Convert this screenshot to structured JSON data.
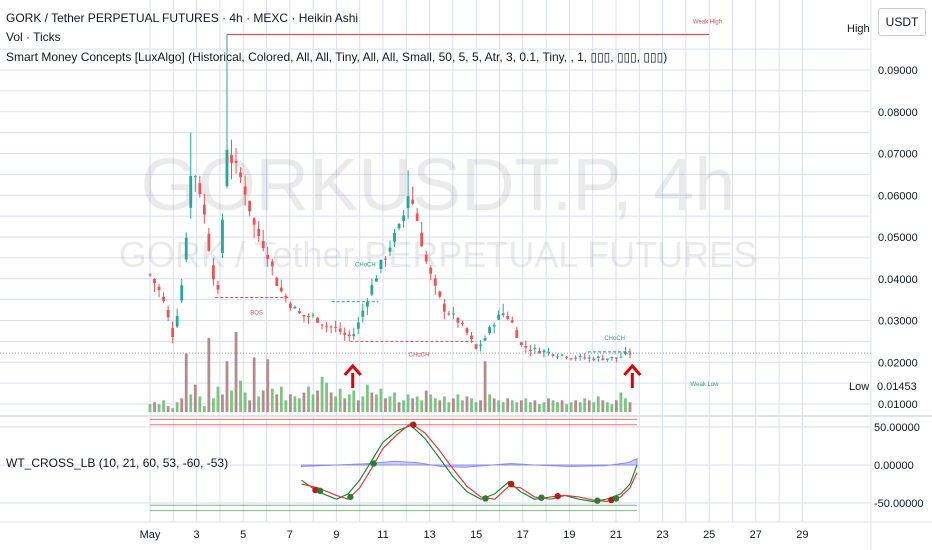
{
  "header": {
    "line1": "GORK / Tether PERPETUAL FUTURES · 4h · MEXC · Heikin Ashi",
    "line2": "Vol · Ticks",
    "line3": "Smart Money Concepts [LuxAlgo] (Historical, Colored, All, All, Tiny, All, All, Small, 50, 5, 5, Atr, 3, 0.1, Tiny, , 1, ▯▯▯, ▯▯▯, ▯▯▯)",
    "wt_label": "WT_CROSS_LB (10, 21, 60, 53, -60, -53)"
  },
  "currency": "USDT",
  "watermark": {
    "line1": "GORKUSDT.P, 4h",
    "line2": "GORK / Tether PERPETUAL FUTURES"
  },
  "price_labels": {
    "high": "High",
    "low": "Low",
    "low_value": "0.01453"
  },
  "smc_labels": {
    "weak_high": "Weak High",
    "weak_low": "Weak Low",
    "bos": "BOS",
    "choch": "CHoCH"
  },
  "colors": {
    "up": "#26a69a",
    "down": "#ef5350",
    "volume_up": "#66bb6a",
    "volume_down": "#a87878",
    "grid": "#d9dff7",
    "signal_arrow": "#e00000",
    "wt1": "#1b8a3a",
    "wt2": "#e53935",
    "band": "#8c8ff0"
  },
  "chart_data": [
    {
      "type": "candlestick",
      "title": "GORK / Tether PERPETUAL FUTURES · 4h · MEXC · Heikin Ashi",
      "x_tick_labels": [
        "May",
        "3",
        "5",
        "7",
        "9",
        "11",
        "13",
        "15",
        "17",
        "19",
        "21",
        "23",
        "25",
        "27",
        "29"
      ],
      "y_tick_labels": [
        "0.01000",
        "0.02000",
        "0.03000",
        "0.04000",
        "0.05000",
        "0.06000",
        "0.07000",
        "0.08000",
        "0.09000"
      ],
      "ylim": [
        0.005,
        0.1
      ],
      "current_price": 0.0222,
      "weak_high": 0.0985,
      "weak_low": 0.01453,
      "keypoints": [
        [
          1.0,
          0.041
        ],
        [
          1.5,
          0.036
        ],
        [
          2.0,
          0.026
        ],
        [
          2.4,
          0.04
        ],
        [
          2.8,
          0.068
        ],
        [
          3.2,
          0.06
        ],
        [
          3.6,
          0.045
        ],
        [
          3.9,
          0.035
        ],
        [
          4.3,
          0.072
        ],
        [
          4.6,
          0.067
        ],
        [
          5.0,
          0.063
        ],
        [
          5.5,
          0.052
        ],
        [
          6.0,
          0.047
        ],
        [
          6.5,
          0.038
        ],
        [
          7.0,
          0.034
        ],
        [
          7.5,
          0.031
        ],
        [
          8.0,
          0.031
        ],
        [
          8.5,
          0.029
        ],
        [
          9.0,
          0.028
        ],
        [
          9.5,
          0.026
        ],
        [
          9.8,
          0.027
        ],
        [
          10.3,
          0.035
        ],
        [
          10.8,
          0.042
        ],
        [
          11.3,
          0.048
        ],
        [
          11.8,
          0.053
        ],
        [
          12.1,
          0.061
        ],
        [
          12.4,
          0.056
        ],
        [
          12.8,
          0.045
        ],
        [
          13.2,
          0.038
        ],
        [
          13.6,
          0.033
        ],
        [
          14.2,
          0.03
        ],
        [
          14.6,
          0.027
        ],
        [
          15.0,
          0.023
        ],
        [
          15.4,
          0.026
        ],
        [
          15.8,
          0.03
        ],
        [
          16.2,
          0.032
        ],
        [
          16.6,
          0.029
        ],
        [
          16.9,
          0.024
        ],
        [
          17.5,
          0.023
        ],
        [
          18.5,
          0.022
        ],
        [
          19.5,
          0.021
        ],
        [
          20.5,
          0.021
        ],
        [
          21.0,
          0.021
        ],
        [
          21.6,
          0.0222
        ]
      ],
      "annotations": [
        {
          "label": "BOS",
          "x": 7.0,
          "y": 0.0355
        },
        {
          "label": "CHoCH",
          "x": 9.8,
          "y": 0.0345
        },
        {
          "label": "CHoCH",
          "x": 12.7,
          "y": 0.025
        },
        {
          "label": "CHoCH",
          "x": 20.8,
          "y": 0.0225
        }
      ],
      "signal_arrows": [
        9.7,
        21.7
      ]
    },
    {
      "type": "bar",
      "title": "Vol · Ticks",
      "values": [
        4,
        5,
        4,
        6,
        3,
        2,
        5,
        7,
        30,
        9,
        14,
        8,
        3,
        38,
        7,
        13,
        9,
        26,
        11,
        41,
        16,
        10,
        6,
        28,
        8,
        11,
        27,
        12,
        9,
        13,
        6,
        9,
        8,
        7,
        10,
        13,
        9,
        11,
        18,
        15,
        10,
        8,
        12,
        7,
        9,
        11,
        6,
        8,
        14,
        10,
        9,
        12,
        7,
        8,
        10,
        5,
        6,
        9,
        7,
        8,
        6,
        11,
        9,
        7,
        6,
        8,
        5,
        7,
        9,
        6,
        8,
        7,
        5,
        6,
        26,
        9,
        7,
        6,
        5,
        7,
        6,
        5,
        6,
        7,
        5,
        6,
        4,
        5,
        7,
        6,
        5,
        6,
        4,
        5,
        6,
        5,
        7,
        6,
        5,
        8,
        6,
        5,
        4,
        6,
        10,
        7,
        5
      ]
    },
    {
      "type": "line",
      "title": "WT_CROSS_LB (10, 21, 60, 53, -60, -53)",
      "y_tick_labels": [
        "50.00000",
        "0.00000",
        "-50.00000"
      ],
      "ylim": [
        -65,
        60
      ],
      "levels": [
        53,
        60,
        -53,
        -60
      ],
      "series": [
        {
          "keypoints": [
            [
              7.5,
              -20
            ],
            [
              8.2,
              -35
            ],
            [
              9.0,
              -45
            ],
            [
              9.5,
              -38
            ],
            [
              10.0,
              -20
            ],
            [
              10.5,
              5
            ],
            [
              11.0,
              30
            ],
            [
              11.6,
              45
            ],
            [
              12.2,
              52
            ],
            [
              12.8,
              35
            ],
            [
              13.4,
              10
            ],
            [
              14.0,
              -15
            ],
            [
              14.6,
              -35
            ],
            [
              15.2,
              -45
            ],
            [
              15.8,
              -38
            ],
            [
              16.4,
              -22
            ],
            [
              16.9,
              -35
            ],
            [
              17.5,
              -45
            ],
            [
              18.2,
              -42
            ],
            [
              18.8,
              -40
            ],
            [
              19.4,
              -45
            ],
            [
              20.0,
              -48
            ],
            [
              20.6,
              -45
            ],
            [
              21.2,
              -38
            ],
            [
              21.6,
              -25
            ],
            [
              21.9,
              0
            ]
          ]
        },
        {
          "keypoints": [
            [
              7.5,
              -25
            ],
            [
              8.2,
              -30
            ],
            [
              9.0,
              -40
            ],
            [
              9.5,
              -45
            ],
            [
              10.0,
              -30
            ],
            [
              10.5,
              -5
            ],
            [
              11.0,
              22
            ],
            [
              11.6,
              40
            ],
            [
              12.2,
              55
            ],
            [
              12.8,
              42
            ],
            [
              13.4,
              20
            ],
            [
              14.0,
              -5
            ],
            [
              14.6,
              -28
            ],
            [
              15.2,
              -42
            ],
            [
              15.8,
              -45
            ],
            [
              16.4,
              -28
            ],
            [
              16.9,
              -30
            ],
            [
              17.5,
              -42
            ],
            [
              18.2,
              -45
            ],
            [
              18.8,
              -40
            ],
            [
              19.4,
              -42
            ],
            [
              20.0,
              -46
            ],
            [
              20.6,
              -48
            ],
            [
              21.2,
              -42
            ],
            [
              21.6,
              -30
            ],
            [
              21.9,
              -10
            ]
          ]
        }
      ],
      "band_keypoints": [
        [
          7.5,
          -2
        ],
        [
          9.0,
          0
        ],
        [
          10.5,
          2
        ],
        [
          11.5,
          5
        ],
        [
          12.5,
          3
        ],
        [
          13.5,
          -2
        ],
        [
          14.5,
          -3
        ],
        [
          16.5,
          2
        ],
        [
          17.5,
          0
        ],
        [
          19.0,
          -2
        ],
        [
          20.5,
          -1
        ],
        [
          21.5,
          3
        ],
        [
          21.9,
          8
        ]
      ],
      "cross_dots": [
        {
          "x": 8.1,
          "y": -33,
          "up": false
        },
        {
          "x": 8.3,
          "y": -34,
          "up": true
        },
        {
          "x": 9.6,
          "y": -42,
          "up": true
        },
        {
          "x": 10.6,
          "y": 2,
          "up": true
        },
        {
          "x": 12.3,
          "y": 53,
          "up": false
        },
        {
          "x": 15.4,
          "y": -44,
          "up": true
        },
        {
          "x": 16.5,
          "y": -25,
          "up": false
        },
        {
          "x": 17.8,
          "y": -43,
          "up": true
        },
        {
          "x": 18.5,
          "y": -41,
          "up": false
        },
        {
          "x": 20.2,
          "y": -47,
          "up": true
        },
        {
          "x": 20.8,
          "y": -46,
          "up": false
        },
        {
          "x": 21.0,
          "y": -44,
          "up": true
        }
      ]
    }
  ]
}
